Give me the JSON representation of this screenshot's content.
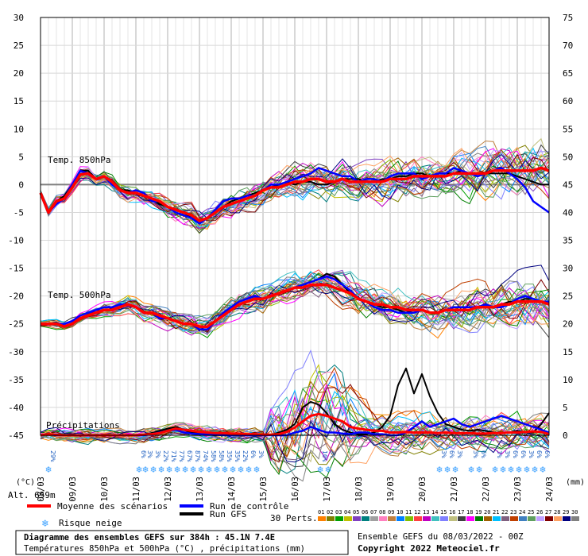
{
  "chart_data": {
    "type": "line",
    "title": "Diagramme des ensembles GEFS sur 384h : 45.1N 7.4E",
    "subtitle": "Températures 850hPa et 500hPa (°C) , précipitations (mm)",
    "run_label": "Ensemble GEFS du 08/03/2022 - 00Z",
    "copyright": "Copyright 2022 Meteociel.fr",
    "left_unit": "(°C)",
    "right_unit": "(mm)",
    "altitude": "Alt. 659m",
    "labels": {
      "t850": "Temp. 850hPa",
      "t500": "Temp. 500hPa",
      "precip": "Précipitations"
    },
    "x_labels": [
      "08/03",
      "09/03",
      "10/03",
      "11/03",
      "12/03",
      "13/03",
      "14/03",
      "15/03",
      "16/03",
      "17/03",
      "18/03",
      "19/03",
      "20/03",
      "21/03",
      "22/03",
      "23/03",
      "24/03"
    ],
    "y_left_ticks": [
      30,
      25,
      20,
      15,
      10,
      5,
      0,
      -5,
      -10,
      -15,
      -20,
      -25,
      -30,
      -35,
      -40,
      -45
    ],
    "y_right_ticks": [
      75,
      70,
      65,
      60,
      55,
      50,
      45,
      40,
      35,
      30,
      25,
      20,
      15,
      10,
      5,
      0
    ],
    "legend": {
      "mean": "Moyenne des scénarios",
      "control": "Run de contrôle",
      "gfs": "Run GFS",
      "snow": "Risque neige",
      "perts": "30 Perts."
    },
    "pert_labels": [
      "01",
      "02",
      "03",
      "04",
      "05",
      "06",
      "07",
      "08",
      "09",
      "10",
      "11",
      "12",
      "13",
      "14",
      "15",
      "16",
      "17",
      "18",
      "19",
      "20",
      "21",
      "22",
      "23",
      "24",
      "25",
      "26",
      "27",
      "28",
      "29",
      "30"
    ],
    "pert_colors": [
      "#ff8000",
      "#808000",
      "#00a000",
      "#c0c000",
      "#8040c0",
      "#008080",
      "#a0a0a0",
      "#ff80c0",
      "#c08040",
      "#0080ff",
      "#80c000",
      "#ff4040",
      "#c000c0",
      "#40c0c0",
      "#8080ff",
      "#c0c080",
      "#404040",
      "#ff00ff",
      "#008000",
      "#a06000",
      "#00c0ff",
      "#806080",
      "#c04000",
      "#4080c0",
      "#60a060",
      "#c0a0ff",
      "#800000",
      "#ffa060",
      "#000080",
      "#808080"
    ],
    "snow_risk": [
      {
        "day": 0.25,
        "pct": [
          "29%"
        ]
      },
      {
        "day": 3.1,
        "pct": [
          "6%"
        ]
      },
      {
        "day": 3.3,
        "pct": [
          "3%"
        ]
      },
      {
        "day": 3.55,
        "pct": [
          "3%"
        ]
      },
      {
        "day": 3.8,
        "pct": [
          "22%"
        ]
      },
      {
        "day": 4.05,
        "pct": [
          "71%"
        ]
      },
      {
        "day": 4.3,
        "pct": [
          "77%"
        ]
      },
      {
        "day": 4.55,
        "pct": [
          "67%"
        ]
      },
      {
        "day": 4.8,
        "pct": [
          "87%"
        ]
      },
      {
        "day": 5.05,
        "pct": [
          "74%"
        ]
      },
      {
        "day": 5.3,
        "pct": [
          "58%"
        ]
      },
      {
        "day": 5.55,
        "pct": [
          "58%"
        ]
      },
      {
        "day": 5.8,
        "pct": [
          "35%"
        ]
      },
      {
        "day": 6.05,
        "pct": [
          "35%"
        ]
      },
      {
        "day": 6.3,
        "pct": [
          "22%"
        ]
      },
      {
        "day": 6.55,
        "pct": [
          "6%"
        ]
      },
      {
        "day": 6.8,
        "pct": [
          "3%"
        ]
      },
      {
        "day": 8.8,
        "pct": [
          "10%"
        ]
      },
      {
        "day": 9.05,
        "pct": [
          "3%"
        ]
      },
      {
        "day": 12.55,
        "pct": [
          "3%"
        ]
      },
      {
        "day": 12.8,
        "pct": [
          "6%"
        ]
      },
      {
        "day": 13.05,
        "pct": [
          "3%"
        ]
      },
      {
        "day": 13.55,
        "pct": [
          "3%"
        ]
      },
      {
        "day": 13.8,
        "pct": [
          "6%"
        ]
      },
      {
        "day": 14.3,
        "pct": [
          "3%"
        ]
      },
      {
        "day": 14.55,
        "pct": [
          "3%"
        ]
      },
      {
        "day": 14.8,
        "pct": [
          "6%"
        ]
      },
      {
        "day": 15.05,
        "pct": [
          "6%"
        ]
      },
      {
        "day": 15.3,
        "pct": [
          "3%"
        ]
      },
      {
        "day": 15.55,
        "pct": [
          "6%"
        ]
      },
      {
        "day": 15.8,
        "pct": [
          "6%"
        ]
      }
    ],
    "series_t850_mean": [
      -1.5,
      -5,
      -3,
      -2.5,
      -0.5,
      1.8,
      2,
      1,
      1.5,
      0.5,
      -1,
      -1.5,
      -1.5,
      -2,
      -2.5,
      -3,
      -4,
      -4.5,
      -5,
      -5.5,
      -6.5,
      -6,
      -5,
      -4,
      -3.5,
      -3,
      -2.5,
      -2,
      -1,
      -0.5,
      -0.5,
      0,
      0.5,
      0.5,
      1,
      1,
      0.5,
      0.5,
      1,
      0.5,
      0.5,
      0.5,
      0.5,
      0.5,
      1,
      1,
      1,
      1.5,
      1.5,
      1.5,
      1.5,
      1.5,
      2,
      2,
      2,
      2,
      2,
      2.5,
      2.5,
      2.5,
      2.5,
      2.5,
      2.5,
      3,
      2.5
    ],
    "series_t850_control": [
      -1.5,
      -5,
      -3.5,
      -2.5,
      0,
      2.5,
      2,
      1,
      1.5,
      0,
      -1,
      -1.5,
      -1,
      -1.5,
      -3,
      -3,
      -4,
      -5,
      -5.5,
      -6,
      -7,
      -6,
      -4.5,
      -3,
      -2.5,
      -2.5,
      -2,
      -2,
      -1,
      0,
      0,
      0.5,
      1,
      1.5,
      2,
      3,
      2.5,
      2,
      1.5,
      1.5,
      0.5,
      1,
      1,
      0.5,
      1.5,
      2,
      2,
      2,
      1,
      1.5,
      2,
      2,
      3,
      2.5,
      2,
      1.5,
      2,
      2.5,
      3,
      2,
      1,
      -0.5,
      -3,
      -4,
      -5
    ],
    "series_t850_gfs": [
      -1.5,
      -5,
      -3,
      -2,
      0,
      2.5,
      2.5,
      1,
      1.5,
      0.5,
      -1,
      -1,
      -1.5,
      -2,
      -2.5,
      -3.5,
      -4,
      -4.5,
      -5,
      -6,
      -6.5,
      -6,
      -5,
      -4,
      -3,
      -2.5,
      -2,
      -1.5,
      -1,
      -0.5,
      0,
      0.5,
      0,
      0.5,
      0.5,
      0,
      0,
      0.5,
      1,
      1,
      1,
      0.5,
      0.5,
      1,
      1,
      1.5,
      1.5,
      2,
      2,
      1.5,
      2,
      2,
      2,
      2.5,
      2,
      2,
      2,
      2,
      2,
      2,
      1.5,
      1,
      0.5,
      0,
      0
    ],
    "series_t500_mean": [
      -25,
      -25,
      -25,
      -25.5,
      -25,
      -24,
      -23.5,
      -23,
      -22.5,
      -22.5,
      -22,
      -21.5,
      -22,
      -23,
      -23,
      -23.5,
      -24,
      -24.5,
      -25,
      -25,
      -25.5,
      -25.5,
      -24.5,
      -23.5,
      -22.5,
      -21.5,
      -21,
      -20.5,
      -20.5,
      -20,
      -19.5,
      -19,
      -18.5,
      -18.5,
      -18,
      -18,
      -18,
      -18.5,
      -19,
      -19.5,
      -20.5,
      -21,
      -21.5,
      -21.5,
      -22,
      -22,
      -22.5,
      -22.5,
      -22.5,
      -23,
      -23,
      -22.5,
      -22.5,
      -22.5,
      -22.5,
      -22,
      -22,
      -22,
      -21.5,
      -21.5,
      -21,
      -21,
      -21,
      -21,
      -21.5
    ],
    "series_t500_control": [
      -25,
      -25,
      -25,
      -25,
      -24.5,
      -23.5,
      -23,
      -22.5,
      -22,
      -22,
      -21.5,
      -21.5,
      -22,
      -23,
      -23,
      -24,
      -24,
      -24.5,
      -25,
      -25,
      -26,
      -26,
      -24.5,
      -23,
      -22,
      -21,
      -20.5,
      -20,
      -20.5,
      -20,
      -19.5,
      -19,
      -18.5,
      -18,
      -17.5,
      -17,
      -16.5,
      -17,
      -18,
      -19,
      -20.5,
      -21,
      -22,
      -22.5,
      -22.5,
      -23,
      -23,
      -23,
      -22.5,
      -23,
      -23,
      -22.5,
      -22,
      -22,
      -22,
      -22,
      -21.5,
      -22,
      -22,
      -21.5,
      -20.5,
      -20,
      -20.5,
      -21,
      -21
    ],
    "series_t500_gfs": [
      -25,
      -25,
      -25,
      -25.5,
      -25,
      -24,
      -23.5,
      -23,
      -22.5,
      -22.5,
      -22,
      -21.5,
      -22,
      -23,
      -23,
      -24,
      -24,
      -24.5,
      -25,
      -25,
      -25.5,
      -25.5,
      -24.5,
      -23.5,
      -22.5,
      -21.5,
      -21,
      -20.5,
      -20.5,
      -20,
      -19.5,
      -19,
      -18.5,
      -18,
      -17.5,
      -17,
      -16,
      -16.5,
      -18,
      -19.5,
      -20.5,
      -21,
      -21.5,
      -22,
      -22,
      -22.5,
      -23,
      -22.5,
      -22.5,
      -23,
      -23,
      -22.5,
      -22.5,
      -22.5,
      -22.5,
      -22,
      -22,
      -22,
      -21.5,
      -21,
      -21,
      -20.5,
      -20.5,
      -21,
      -21
    ],
    "series_precip_mean": [
      0,
      0.2,
      0.1,
      0,
      0,
      0,
      0,
      0,
      0,
      0,
      0,
      0,
      0,
      0.1,
      0.2,
      0.4,
      0.8,
      1.2,
      1.0,
      0.8,
      0.6,
      0.5,
      0.4,
      0.4,
      0.3,
      0.3,
      0.2,
      0.2,
      0.1,
      0.1,
      0.2,
      0.6,
      1.4,
      2.5,
      3.5,
      3.8,
      3.5,
      3.0,
      2.5,
      1.5,
      1.2,
      1.0,
      0.8,
      0.8,
      0.5,
      0.5,
      0.6,
      0.5,
      0.5,
      0.5,
      0.4,
      0.5,
      0.4,
      0.4,
      0.4,
      0.3,
      0.3,
      0.4,
      0.4,
      0.5,
      0.5,
      0.6,
      0.7,
      0.6,
      0.2
    ],
    "series_precip_control": [
      0,
      0.2,
      0,
      0,
      0,
      0,
      0,
      0,
      0,
      0,
      0,
      0,
      0,
      0,
      0.2,
      0.5,
      0.8,
      1,
      0.5,
      0.3,
      0.2,
      0.2,
      0.1,
      0,
      0,
      0,
      0,
      0,
      0,
      0,
      0,
      0,
      0.5,
      0.8,
      1.5,
      1.0,
      0.5,
      0.5,
      0.3,
      0.2,
      0.5,
      0.5,
      0.2,
      0.2,
      0,
      0,
      0.5,
      1.5,
      2.5,
      1.5,
      2.0,
      2.5,
      3.0,
      2.0,
      1.5,
      2.0,
      2.5,
      3.0,
      3.5,
      3.0,
      2.5,
      2.0,
      1.5,
      1.0,
      0.5
    ],
    "series_precip_gfs": [
      0,
      0.2,
      0,
      0,
      0,
      0,
      0,
      0,
      0,
      0,
      0,
      0,
      0,
      0.2,
      0.4,
      0.8,
      1.2,
      1.5,
      1.0,
      0.5,
      0.3,
      0.2,
      0.1,
      0,
      0,
      0,
      0,
      0,
      0,
      0,
      0.5,
      1.0,
      2.0,
      5.0,
      6.0,
      5.5,
      4.0,
      2.0,
      1.0,
      0.5,
      0.2,
      0.2,
      0.5,
      1.5,
      3.5,
      9.0,
      12.0,
      7.5,
      11.0,
      7.0,
      4.0,
      2.0,
      1.5,
      1.0,
      0.8,
      1.0,
      0.8,
      0.5,
      0.5,
      0.5,
      0.8,
      0.5,
      0.5,
      2.0,
      4.0
    ],
    "x_range_days": [
      0,
      16
    ],
    "y_left_range": [
      -45,
      30
    ],
    "y_right_range": [
      0,
      75
    ]
  }
}
